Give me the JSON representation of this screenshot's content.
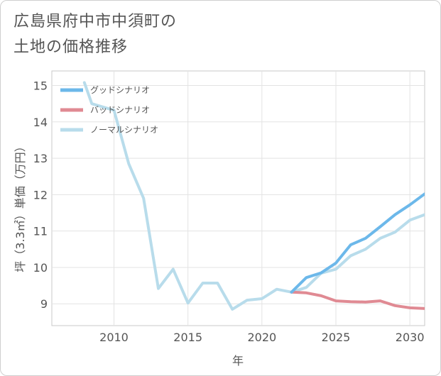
{
  "title_line1": "広島県府中市中須町の",
  "title_line2": "土地の価格推移",
  "chart_data": {
    "type": "line",
    "title": "広島県府中市中須町の土地の価格推移",
    "xlabel": "年",
    "ylabel": "坪（3.3㎡）単価（万円）",
    "xlim": [
      2005.8,
      2031
    ],
    "ylim": [
      8.4,
      15.4
    ],
    "xticks": [
      2010,
      2015,
      2020,
      2025,
      2030
    ],
    "yticks": [
      9,
      10,
      11,
      12,
      13,
      14,
      15
    ],
    "grid": true,
    "legend_position": "top-left",
    "series": [
      {
        "name": "グッドシナリオ",
        "color": "#6cb8ea",
        "x": [
          2022,
          2023,
          2024,
          2025,
          2026,
          2027,
          2028,
          2029,
          2030,
          2031
        ],
        "values": [
          9.32,
          9.72,
          9.85,
          10.12,
          10.62,
          10.8,
          11.12,
          11.45,
          11.72,
          12.02
        ]
      },
      {
        "name": "バッドシナリオ",
        "color": "#e08a93",
        "x": [
          2022,
          2023,
          2024,
          2025,
          2026,
          2027,
          2028,
          2029,
          2030,
          2031
        ],
        "values": [
          9.32,
          9.3,
          9.22,
          9.08,
          9.06,
          9.05,
          9.08,
          8.95,
          8.89,
          8.87
        ]
      },
      {
        "name": "ノーマルシナリオ",
        "color": "#b8dceb",
        "x": [
          2008,
          2008.5,
          2010,
          2011,
          2012,
          2013,
          2014,
          2015,
          2016,
          2017,
          2018,
          2019,
          2020,
          2021,
          2022,
          2023,
          2024,
          2025,
          2026,
          2027,
          2028,
          2029,
          2030,
          2031
        ],
        "values": [
          15.08,
          14.5,
          14.32,
          12.85,
          11.9,
          9.42,
          9.95,
          9.02,
          9.57,
          9.57,
          8.85,
          9.1,
          9.14,
          9.4,
          9.32,
          9.45,
          9.84,
          9.95,
          10.32,
          10.5,
          10.8,
          10.97,
          11.3,
          11.45
        ]
      }
    ]
  }
}
